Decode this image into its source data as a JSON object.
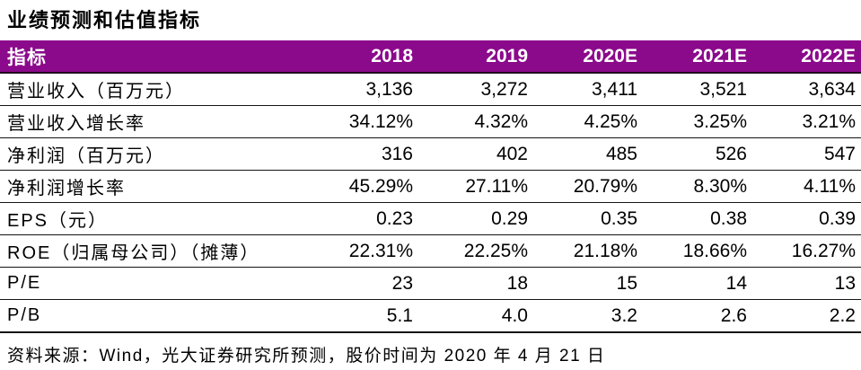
{
  "title": "业绩预测和估值指标",
  "table": {
    "header": {
      "label": "指标",
      "years": [
        "2018",
        "2019",
        "2020E",
        "2021E",
        "2022E"
      ]
    },
    "rows": [
      {
        "label": "营业收入（百万元）",
        "values": [
          "3,136",
          "3,272",
          "3,411",
          "3,521",
          "3,634"
        ]
      },
      {
        "label": "营业收入增长率",
        "values": [
          "34.12%",
          "4.32%",
          "4.25%",
          "3.25%",
          "3.21%"
        ]
      },
      {
        "label": "净利润（百万元）",
        "values": [
          "316",
          "402",
          "485",
          "526",
          "547"
        ]
      },
      {
        "label": "净利润增长率",
        "values": [
          "45.29%",
          "27.11%",
          "20.79%",
          "8.30%",
          "4.11%"
        ]
      },
      {
        "label": "EPS（元）",
        "values": [
          "0.23",
          "0.29",
          "0.35",
          "0.38",
          "0.39"
        ]
      },
      {
        "label": "ROE（归属母公司）（摊薄）",
        "values": [
          "22.31%",
          "22.25%",
          "21.18%",
          "18.66%",
          "16.27%"
        ]
      },
      {
        "label": "P/E",
        "values": [
          "23",
          "18",
          "15",
          "14",
          "13"
        ]
      },
      {
        "label": "P/B",
        "values": [
          "5.1",
          "4.0",
          "3.2",
          "2.6",
          "2.2"
        ]
      }
    ]
  },
  "footer": {
    "text": "资料来源：Wind，光大证券研究所预测，股价时间为 2020 年 4 月 21 日"
  },
  "colors": {
    "header_bg": "#8B0A8B",
    "header_text": "#FFFFFF",
    "header_border": "#21051E",
    "row_border": "#141414",
    "body_text": "#000000",
    "background": "#FFFFFF"
  }
}
